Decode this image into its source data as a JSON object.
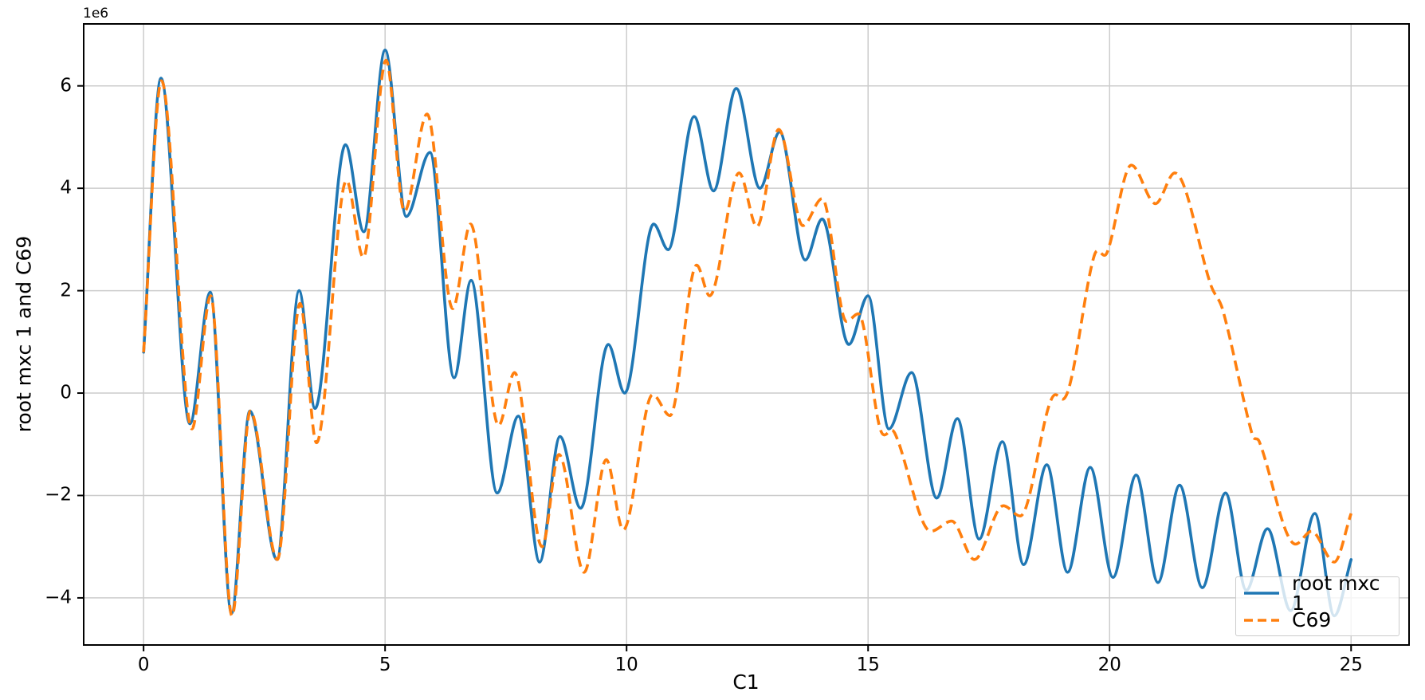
{
  "figure": {
    "offset_text": "1e6",
    "background_color": "#ffffff",
    "grid_color": "#cccccc",
    "spine_color": "#000000",
    "accent_blue": "#1f77b4",
    "accent_orange": "#ff7f0e"
  },
  "chart_data": {
    "type": "line",
    "title": "",
    "xlabel": "C1",
    "ylabel": "root mxc 1 and C69",
    "y_offset_multiplier_label": "1e6",
    "xlim": [
      -1.24,
      26.2
    ],
    "ylim": [
      -4.92,
      7.21
    ],
    "xticks": [
      0,
      5,
      10,
      15,
      20,
      25
    ],
    "yticks": [
      -4,
      -2,
      0,
      2,
      4,
      6
    ],
    "grid": true,
    "legend_position": "lower right",
    "series": [
      {
        "name": "root mxc 1",
        "color": "#1f77b4",
        "style": "solid",
        "points": [
          [
            0.0,
            0.8
          ],
          [
            0.36,
            6.15
          ],
          [
            0.96,
            -0.6
          ],
          [
            1.38,
            1.97
          ],
          [
            1.82,
            -4.3
          ],
          [
            2.2,
            -0.35
          ],
          [
            2.76,
            -3.25
          ],
          [
            3.22,
            2.0
          ],
          [
            3.55,
            -0.3
          ],
          [
            4.18,
            4.85
          ],
          [
            4.56,
            3.15
          ],
          [
            5.0,
            6.7
          ],
          [
            5.44,
            3.45
          ],
          [
            5.93,
            4.7
          ],
          [
            6.43,
            0.3
          ],
          [
            6.78,
            2.2
          ],
          [
            7.32,
            -1.95
          ],
          [
            7.76,
            -0.45
          ],
          [
            8.2,
            -3.3
          ],
          [
            8.62,
            -0.85
          ],
          [
            9.05,
            -2.25
          ],
          [
            9.62,
            0.95
          ],
          [
            9.96,
            0.0
          ],
          [
            10.56,
            3.3
          ],
          [
            10.86,
            2.8
          ],
          [
            11.4,
            5.4
          ],
          [
            11.8,
            3.95
          ],
          [
            12.27,
            5.95
          ],
          [
            12.76,
            4.0
          ],
          [
            13.17,
            5.1
          ],
          [
            13.7,
            2.6
          ],
          [
            14.05,
            3.4
          ],
          [
            14.6,
            0.95
          ],
          [
            15.0,
            1.9
          ],
          [
            15.43,
            -0.7
          ],
          [
            15.9,
            0.4
          ],
          [
            16.42,
            -2.05
          ],
          [
            16.85,
            -0.5
          ],
          [
            17.3,
            -2.85
          ],
          [
            17.78,
            -0.95
          ],
          [
            18.22,
            -3.35
          ],
          [
            18.7,
            -1.4
          ],
          [
            19.13,
            -3.5
          ],
          [
            19.6,
            -1.45
          ],
          [
            20.07,
            -3.6
          ],
          [
            20.55,
            -1.6
          ],
          [
            21.0,
            -3.7
          ],
          [
            21.45,
            -1.8
          ],
          [
            21.92,
            -3.8
          ],
          [
            22.4,
            -1.95
          ],
          [
            22.83,
            -3.85
          ],
          [
            23.27,
            -2.65
          ],
          [
            23.75,
            -4.25
          ],
          [
            24.25,
            -2.35
          ],
          [
            24.65,
            -4.35
          ],
          [
            25.0,
            -3.25
          ]
        ]
      },
      {
        "name": "C69",
        "color": "#ff7f0e",
        "style": "dashed",
        "points": [
          [
            0.0,
            0.8
          ],
          [
            0.37,
            6.1
          ],
          [
            1.0,
            -0.7
          ],
          [
            1.39,
            1.9
          ],
          [
            1.83,
            -4.35
          ],
          [
            2.21,
            -0.35
          ],
          [
            2.77,
            -3.25
          ],
          [
            3.24,
            1.75
          ],
          [
            3.58,
            -0.97
          ],
          [
            4.2,
            4.15
          ],
          [
            4.55,
            2.65
          ],
          [
            5.02,
            6.5
          ],
          [
            5.4,
            3.55
          ],
          [
            5.87,
            5.45
          ],
          [
            6.4,
            1.65
          ],
          [
            6.77,
            3.3
          ],
          [
            7.35,
            -0.63
          ],
          [
            7.68,
            0.4
          ],
          [
            8.25,
            -3.0
          ],
          [
            8.6,
            -1.2
          ],
          [
            9.12,
            -3.5
          ],
          [
            9.58,
            -1.3
          ],
          [
            9.93,
            -2.67
          ],
          [
            10.54,
            -0.03
          ],
          [
            10.9,
            -0.44
          ],
          [
            11.45,
            2.5
          ],
          [
            11.72,
            1.9
          ],
          [
            12.33,
            4.3
          ],
          [
            12.7,
            3.25
          ],
          [
            13.15,
            5.15
          ],
          [
            13.65,
            3.27
          ],
          [
            14.05,
            3.8
          ],
          [
            14.55,
            1.4
          ],
          [
            14.8,
            1.55
          ],
          [
            15.25,
            -0.7
          ],
          [
            15.55,
            -0.78
          ],
          [
            16.3,
            -2.7
          ],
          [
            16.73,
            -2.5
          ],
          [
            17.2,
            -3.25
          ],
          [
            17.8,
            -2.2
          ],
          [
            18.15,
            -2.4
          ],
          [
            18.88,
            -0.03
          ],
          [
            19.03,
            -0.12
          ],
          [
            19.68,
            2.68
          ],
          [
            19.95,
            2.75
          ],
          [
            20.45,
            4.45
          ],
          [
            20.95,
            3.7
          ],
          [
            21.35,
            4.3
          ],
          [
            22.1,
            2.1
          ],
          [
            22.35,
            1.6
          ],
          [
            22.95,
            -0.8
          ],
          [
            23.1,
            -0.95
          ],
          [
            23.85,
            -2.95
          ],
          [
            24.18,
            -2.7
          ],
          [
            24.65,
            -3.3
          ],
          [
            25.0,
            -2.35
          ]
        ]
      }
    ]
  }
}
